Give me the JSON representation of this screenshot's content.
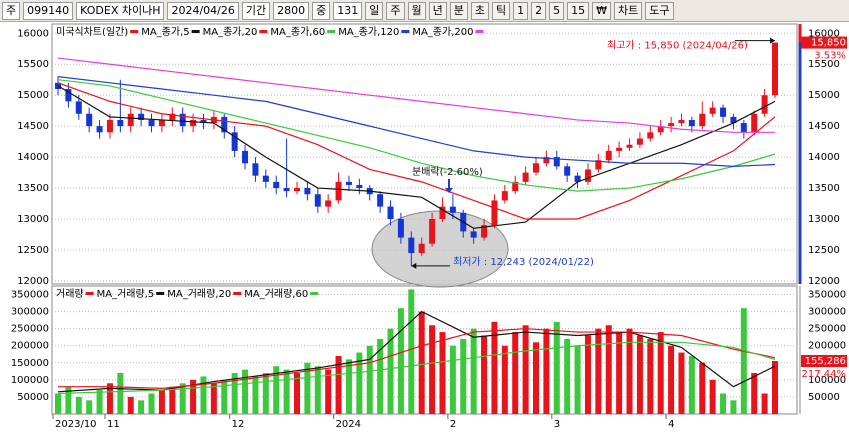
{
  "toolbar": {
    "items": [
      "주",
      "099140",
      "KODEX 차이나H",
      "2024/04/26",
      "기간",
      "2800",
      "중",
      "131",
      "일",
      "주",
      "월",
      "년",
      "분",
      "초",
      "틱",
      "1",
      "2",
      "5",
      "15",
      "₩",
      "차트",
      "도구"
    ]
  },
  "chart_data": [
    {
      "type": "candlestick",
      "name": "미국식차트(일간)",
      "up_color": "#e8141c",
      "down_color": "#1536d6",
      "open": [
        15200,
        15100,
        14900,
        14700,
        14500,
        14400,
        14600,
        14500,
        14700,
        14600,
        14500,
        14600,
        14700,
        14500,
        14600,
        14550,
        14650,
        14400,
        14100,
        13900,
        13700,
        13600,
        13500,
        13450,
        13500,
        13400,
        13200,
        13300,
        13600,
        13550,
        13500,
        13400,
        13200,
        13000,
        12700,
        12450,
        12600,
        13000,
        13200,
        13100,
        12800,
        12700,
        12900,
        13300,
        13450,
        13600,
        13750,
        13900,
        14000,
        13850,
        13700,
        13600,
        13800,
        13950,
        14100,
        14150,
        14200,
        14300,
        14400,
        14500,
        14550,
        14600,
        14500,
        14700,
        14800,
        14650,
        14550,
        14400,
        14700,
        15000
      ],
      "high": [
        15300,
        15200,
        15000,
        14800,
        14600,
        14700,
        15250,
        14800,
        14800,
        14700,
        14700,
        14800,
        14800,
        14700,
        14700,
        14750,
        14700,
        14500,
        14200,
        14000,
        13800,
        13700,
        14300,
        13600,
        13600,
        13500,
        13400,
        13750,
        13700,
        13650,
        13550,
        13450,
        13300,
        13100,
        12800,
        12700,
        13100,
        13350,
        13400,
        13150,
        12850,
        13000,
        13400,
        13550,
        13700,
        13850,
        14000,
        14100,
        14100,
        13900,
        13750,
        13900,
        14050,
        14200,
        14250,
        14300,
        14400,
        14500,
        14600,
        14650,
        14700,
        14650,
        14900,
        14900,
        14850,
        14700,
        14600,
        14750,
        15100,
        15850
      ],
      "low": [
        15000,
        14800,
        14600,
        14400,
        14300,
        14300,
        14400,
        14400,
        14500,
        14400,
        14400,
        14500,
        14400,
        14400,
        14450,
        14450,
        14300,
        14000,
        13800,
        13600,
        13500,
        13400,
        13350,
        13400,
        13300,
        13100,
        13100,
        13250,
        13450,
        13400,
        13300,
        13100,
        12900,
        12600,
        12243,
        12400,
        12550,
        12950,
        13000,
        12700,
        12600,
        12650,
        12850,
        13250,
        13400,
        13550,
        13700,
        13850,
        13800,
        13600,
        13500,
        13550,
        13750,
        13900,
        14000,
        14100,
        14150,
        14250,
        14350,
        14400,
        14500,
        14400,
        14450,
        14650,
        14550,
        14450,
        14300,
        14350,
        14650,
        14950
      ],
      "close": [
        15100,
        14900,
        14700,
        14500,
        14400,
        14600,
        14500,
        14700,
        14600,
        14500,
        14600,
        14700,
        14500,
        14600,
        14550,
        14650,
        14400,
        14100,
        13900,
        13700,
        13600,
        13500,
        13450,
        13500,
        13400,
        13200,
        13300,
        13600,
        13550,
        13500,
        13400,
        13200,
        13000,
        12700,
        12450,
        12600,
        13000,
        13200,
        13100,
        12800,
        12700,
        12900,
        13300,
        13450,
        13600,
        13750,
        13900,
        14000,
        13850,
        13700,
        13600,
        13800,
        13950,
        14100,
        14150,
        14200,
        14300,
        14400,
        14500,
        14550,
        14600,
        14500,
        14700,
        14800,
        14650,
        14550,
        14400,
        14700,
        15000,
        15850
      ],
      "ma_lines": [
        {
          "name": "MA_종가,5",
          "color": "#111111",
          "x": [
            0,
            5,
            10,
            15,
            20,
            25,
            30,
            35,
            40,
            45,
            50,
            55,
            60,
            65,
            69
          ],
          "values": [
            15150,
            14650,
            14600,
            14550,
            14000,
            13500,
            13450,
            13350,
            12850,
            12950,
            13600,
            13900,
            14200,
            14550,
            14900
          ]
        },
        {
          "name": "MA_종가,20",
          "color": "#e8141c",
          "x": [
            0,
            5,
            10,
            15,
            20,
            25,
            30,
            35,
            40,
            45,
            50,
            55,
            60,
            65,
            69
          ],
          "values": [
            15200,
            14900,
            14700,
            14600,
            14500,
            14200,
            13800,
            13600,
            13300,
            13000,
            13000,
            13300,
            13700,
            14100,
            14650
          ]
        },
        {
          "name": "MA_종가,60",
          "color": "#3cc83c",
          "x": [
            0,
            5,
            10,
            15,
            20,
            25,
            30,
            35,
            40,
            45,
            50,
            55,
            60,
            65,
            69
          ],
          "values": [
            15250,
            15150,
            14950,
            14750,
            14550,
            14350,
            14150,
            13900,
            13700,
            13550,
            13450,
            13500,
            13650,
            13850,
            14050
          ]
        },
        {
          "name": "MA_종가,120",
          "color": "#1f3fc8",
          "x": [
            0,
            5,
            10,
            15,
            20,
            25,
            30,
            35,
            40,
            45,
            50,
            55,
            60,
            65,
            69
          ],
          "values": [
            15300,
            15200,
            15100,
            15000,
            14900,
            14700,
            14500,
            14300,
            14100,
            14000,
            13950,
            13900,
            13900,
            13850,
            13880
          ]
        },
        {
          "name": "MA_종가,200",
          "color": "#e040e0",
          "x": [
            0,
            5,
            10,
            15,
            20,
            25,
            30,
            35,
            40,
            45,
            50,
            55,
            60,
            65,
            69
          ],
          "values": [
            15600,
            15500,
            15400,
            15300,
            15200,
            15100,
            15000,
            14900,
            14800,
            14700,
            14600,
            14550,
            14450,
            14400,
            14400
          ]
        }
      ],
      "ylim": [
        11950,
        16150
      ],
      "yticks": [
        12000,
        12500,
        13000,
        13500,
        14000,
        14500,
        15000,
        15500,
        16000
      ],
      "high_label": "최고가 : 15,850 (2024/04/26)",
      "low_label": "최저가 : 12,243 (2024/01/22)",
      "event_label": "분배락(-2.60%)",
      "last_label": "15,850",
      "change_label": "3.53%"
    },
    {
      "type": "bar",
      "name": "거래량",
      "up_color": "#e8141c",
      "down_color": "#3cc83c",
      "categories": [
        "2023/10",
        null,
        null,
        null,
        null,
        "11",
        null,
        null,
        null,
        null,
        null,
        null,
        null,
        null,
        null,
        null,
        null,
        "12",
        null,
        null,
        null,
        null,
        null,
        null,
        null,
        null,
        null,
        "2024",
        null,
        null,
        null,
        null,
        null,
        null,
        null,
        null,
        null,
        null,
        "2",
        null,
        null,
        null,
        null,
        null,
        null,
        null,
        null,
        null,
        "3",
        null,
        null,
        null,
        null,
        null,
        null,
        null,
        null,
        null,
        null,
        "4",
        null,
        null,
        null,
        null,
        null,
        null,
        null,
        null,
        null,
        null
      ],
      "values": [
        60000,
        80000,
        50000,
        40000,
        70000,
        90000,
        120000,
        50000,
        40000,
        60000,
        70000,
        80000,
        90000,
        100000,
        110000,
        90000,
        100000,
        120000,
        130000,
        110000,
        120000,
        140000,
        130000,
        120000,
        150000,
        140000,
        130000,
        170000,
        160000,
        180000,
        200000,
        220000,
        250000,
        310000,
        365000,
        300000,
        260000,
        240000,
        200000,
        220000,
        250000,
        230000,
        270000,
        200000,
        240000,
        260000,
        210000,
        250000,
        270000,
        220000,
        200000,
        230000,
        250000,
        260000,
        240000,
        250000,
        230000,
        220000,
        240000,
        200000,
        180000,
        170000,
        150000,
        100000,
        60000,
        40000,
        310000,
        120000,
        60000,
        155286
      ],
      "ma_lines": [
        {
          "name": "MA_거래량,5",
          "color": "#111111",
          "x": [
            0,
            5,
            10,
            15,
            20,
            25,
            30,
            35,
            40,
            45,
            50,
            55,
            60,
            65,
            69
          ],
          "values": [
            65000,
            75000,
            70000,
            95000,
            115000,
            135000,
            160000,
            300000,
            225000,
            240000,
            230000,
            240000,
            195000,
            80000,
            140000
          ]
        },
        {
          "name": "MA_거래량,20",
          "color": "#e8141c",
          "x": [
            0,
            5,
            10,
            15,
            20,
            25,
            30,
            35,
            40,
            45,
            50,
            55,
            60,
            65,
            69
          ],
          "values": [
            80000,
            80000,
            75000,
            90000,
            110000,
            130000,
            150000,
            200000,
            240000,
            250000,
            240000,
            240000,
            230000,
            190000,
            165000
          ]
        },
        {
          "name": "MA_거래량,60",
          "color": "#3cc83c",
          "x": [
            0,
            5,
            10,
            15,
            20,
            25,
            30,
            35,
            40,
            45,
            50,
            55,
            60,
            65,
            69
          ],
          "values": [
            60000,
            65000,
            70000,
            80000,
            95000,
            110000,
            125000,
            145000,
            165000,
            185000,
            200000,
            210000,
            210000,
            195000,
            160000
          ]
        }
      ],
      "ylim": [
        0,
        375000
      ],
      "yticks": [
        50000,
        100000,
        150000,
        200000,
        250000,
        300000,
        350000
      ],
      "last_label": "155,286",
      "change_label": "217.44%"
    }
  ]
}
